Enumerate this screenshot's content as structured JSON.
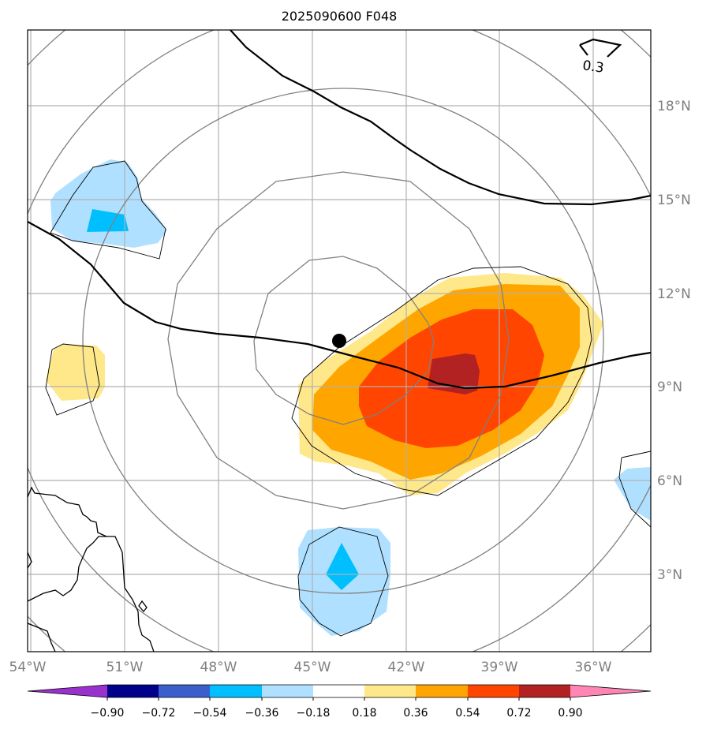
{
  "title": "2025090600 F048",
  "lon_labels": [
    "54°W",
    "51°W",
    "48°W",
    "45°W",
    "42°W",
    "39°W",
    "36°W"
  ],
  "lat_labels": [
    "18°N",
    "15°N",
    "12°N",
    "9°N",
    "6°N",
    "3°N"
  ],
  "contour_label": "0.3",
  "colorbar": {
    "ticks": [
      "−0.90",
      "−0.72",
      "−0.54",
      "−0.36",
      "−0.18",
      "0.18",
      "0.36",
      "0.54",
      "0.72",
      "0.90"
    ],
    "colors": [
      "#9932cc",
      "#00008b",
      "#3a5fcd",
      "#00bfff",
      "#b0e0ff",
      "#ffffff",
      "#ffe88a",
      "#ffa500",
      "#ff4500",
      "#b22222",
      "#ff85b4"
    ]
  },
  "map": {
    "lon_range": [
      "54°W",
      "34°W"
    ],
    "lat_range": [
      "0.5°N",
      "20°N"
    ],
    "storm_center": "43.9°W 10.5°N",
    "range_rings": 5
  }
}
